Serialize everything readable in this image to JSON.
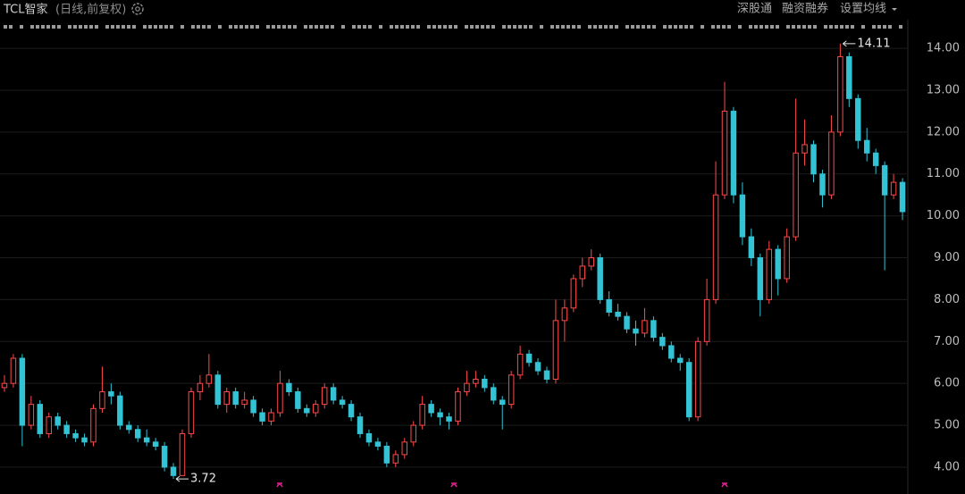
{
  "chart_data": {
    "type": "candlestick",
    "title": "TCL智家",
    "subtitle": "(日线,前复权)",
    "toolbar": [
      "深股通",
      "融资融券",
      "设置均线"
    ],
    "up_color": "#ff4a4a",
    "down_color": "#33c3d4",
    "grid": true,
    "ylim": [
      3.53,
      14.3
    ],
    "yticks": [
      {
        "value": 4,
        "label": "4.00"
      },
      {
        "value": 5,
        "label": "5.00"
      },
      {
        "value": 6,
        "label": "6.00"
      },
      {
        "value": 7,
        "label": "7.00"
      },
      {
        "value": 8,
        "label": "8.00"
      },
      {
        "value": 9,
        "label": "9.00"
      },
      {
        "value": 10,
        "label": "10.00"
      },
      {
        "value": 11,
        "label": "11.00"
      },
      {
        "value": 12,
        "label": "12.00"
      },
      {
        "value": 13,
        "label": "13.00"
      },
      {
        "value": 14,
        "label": "14.00"
      }
    ],
    "max_annotation": 14.11,
    "min_annotation": 3.72,
    "ohlc": [
      [
        5.9,
        6.2,
        5.8,
        6.0
      ],
      [
        6.0,
        6.7,
        5.9,
        6.6
      ],
      [
        6.6,
        6.7,
        4.5,
        5.0
      ],
      [
        5.0,
        5.7,
        4.9,
        5.5
      ],
      [
        5.5,
        5.6,
        4.7,
        4.8
      ],
      [
        4.8,
        5.3,
        4.7,
        5.2
      ],
      [
        5.2,
        5.3,
        4.9,
        5.0
      ],
      [
        5.0,
        5.1,
        4.7,
        4.8
      ],
      [
        4.8,
        4.9,
        4.6,
        4.7
      ],
      [
        4.7,
        4.8,
        4.5,
        4.6
      ],
      [
        4.6,
        5.5,
        4.5,
        5.4
      ],
      [
        5.4,
        6.4,
        5.3,
        5.8
      ],
      [
        5.8,
        6.0,
        5.5,
        5.7
      ],
      [
        5.7,
        5.8,
        4.9,
        5.0
      ],
      [
        5.0,
        5.1,
        4.8,
        4.9
      ],
      [
        4.9,
        5.0,
        4.6,
        4.7
      ],
      [
        4.7,
        4.9,
        4.5,
        4.6
      ],
      [
        4.6,
        4.7,
        4.4,
        4.5
      ],
      [
        4.5,
        4.6,
        3.9,
        4.0
      ],
      [
        4.0,
        4.1,
        3.72,
        3.8
      ],
      [
        3.8,
        4.9,
        3.8,
        4.8
      ],
      [
        4.8,
        5.9,
        4.7,
        5.8
      ],
      [
        5.8,
        6.2,
        5.6,
        6.0
      ],
      [
        6.0,
        6.7,
        5.9,
        6.2
      ],
      [
        6.2,
        6.3,
        5.4,
        5.5
      ],
      [
        5.5,
        5.9,
        5.3,
        5.8
      ],
      [
        5.8,
        5.9,
        5.4,
        5.5
      ],
      [
        5.5,
        5.8,
        5.4,
        5.6
      ],
      [
        5.6,
        5.7,
        5.2,
        5.3
      ],
      [
        5.3,
        5.4,
        5.0,
        5.1
      ],
      [
        5.1,
        5.4,
        5.0,
        5.3
      ],
      [
        5.3,
        6.3,
        5.2,
        6.0
      ],
      [
        6.0,
        6.1,
        5.7,
        5.8
      ],
      [
        5.8,
        5.9,
        5.3,
        5.4
      ],
      [
        5.4,
        5.5,
        5.2,
        5.3
      ],
      [
        5.3,
        5.6,
        5.2,
        5.5
      ],
      [
        5.5,
        6.0,
        5.4,
        5.9
      ],
      [
        5.9,
        6.0,
        5.5,
        5.6
      ],
      [
        5.6,
        5.7,
        5.4,
        5.5
      ],
      [
        5.5,
        5.6,
        5.1,
        5.2
      ],
      [
        5.2,
        5.3,
        4.7,
        4.8
      ],
      [
        4.8,
        4.9,
        4.5,
        4.6
      ],
      [
        4.6,
        4.7,
        4.4,
        4.5
      ],
      [
        4.5,
        4.6,
        4.0,
        4.1
      ],
      [
        4.1,
        4.4,
        4.0,
        4.3
      ],
      [
        4.3,
        4.7,
        4.2,
        4.6
      ],
      [
        4.6,
        5.1,
        4.5,
        5.0
      ],
      [
        5.0,
        5.7,
        4.9,
        5.5
      ],
      [
        5.5,
        5.6,
        5.2,
        5.3
      ],
      [
        5.3,
        5.4,
        5.0,
        5.2
      ],
      [
        5.2,
        5.3,
        4.9,
        5.1
      ],
      [
        5.1,
        5.9,
        5.0,
        5.8
      ],
      [
        5.8,
        6.3,
        5.7,
        6.0
      ],
      [
        6.0,
        6.3,
        5.9,
        6.1
      ],
      [
        6.1,
        6.2,
        5.8,
        5.9
      ],
      [
        5.9,
        6.0,
        5.5,
        5.6
      ],
      [
        5.6,
        5.7,
        4.9,
        5.5
      ],
      [
        5.5,
        6.3,
        5.4,
        6.2
      ],
      [
        6.2,
        6.9,
        6.1,
        6.7
      ],
      [
        6.7,
        6.8,
        6.4,
        6.5
      ],
      [
        6.5,
        6.6,
        6.2,
        6.3
      ],
      [
        6.3,
        6.4,
        6.0,
        6.1
      ],
      [
        6.1,
        8.0,
        6.0,
        7.5
      ],
      [
        7.5,
        8.0,
        7.0,
        7.8
      ],
      [
        7.8,
        8.6,
        7.7,
        8.5
      ],
      [
        8.5,
        9.0,
        8.3,
        8.8
      ],
      [
        8.8,
        9.2,
        8.7,
        9.0
      ],
      [
        9.0,
        9.1,
        7.9,
        8.0
      ],
      [
        8.0,
        8.2,
        7.6,
        7.7
      ],
      [
        7.7,
        7.9,
        7.5,
        7.6
      ],
      [
        7.6,
        7.7,
        7.2,
        7.3
      ],
      [
        7.3,
        7.5,
        6.9,
        7.2
      ],
      [
        7.2,
        7.8,
        7.1,
        7.5
      ],
      [
        7.5,
        7.6,
        7.0,
        7.1
      ],
      [
        7.1,
        7.2,
        6.8,
        6.9
      ],
      [
        6.9,
        7.0,
        6.5,
        6.6
      ],
      [
        6.6,
        6.7,
        6.3,
        6.5
      ],
      [
        6.5,
        6.6,
        5.1,
        5.2
      ],
      [
        5.2,
        7.1,
        5.1,
        7.0
      ],
      [
        7.0,
        8.5,
        6.9,
        8.0
      ],
      [
        8.0,
        11.3,
        7.9,
        10.5
      ],
      [
        10.5,
        13.2,
        10.4,
        12.5
      ],
      [
        12.5,
        12.6,
        10.3,
        10.5
      ],
      [
        10.5,
        10.8,
        9.3,
        9.5
      ],
      [
        9.5,
        9.7,
        8.8,
        9.0
      ],
      [
        9.0,
        9.1,
        7.6,
        8.0
      ],
      [
        8.0,
        9.4,
        7.9,
        9.2
      ],
      [
        9.2,
        9.3,
        8.1,
        8.5
      ],
      [
        8.5,
        9.7,
        8.4,
        9.5
      ],
      [
        9.5,
        12.8,
        9.4,
        11.5
      ],
      [
        11.5,
        12.3,
        11.2,
        11.7
      ],
      [
        11.7,
        11.8,
        10.8,
        11.0
      ],
      [
        11.0,
        11.1,
        10.2,
        10.5
      ],
      [
        10.5,
        12.4,
        10.4,
        12.0
      ],
      [
        12.0,
        14.11,
        11.9,
        13.8
      ],
      [
        13.8,
        13.9,
        12.6,
        12.8
      ],
      [
        12.8,
        12.9,
        11.6,
        11.8
      ],
      [
        11.8,
        12.1,
        11.3,
        11.5
      ],
      [
        11.5,
        11.6,
        11.0,
        11.2
      ],
      [
        11.2,
        11.3,
        8.7,
        10.5
      ],
      [
        10.5,
        11.0,
        10.4,
        10.8
      ],
      [
        10.8,
        10.9,
        9.9,
        10.1
      ]
    ]
  }
}
